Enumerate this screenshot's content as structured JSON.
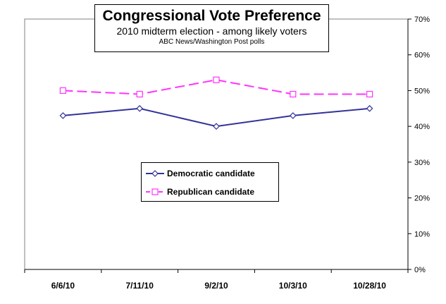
{
  "chart_data": {
    "type": "line",
    "title": "Congressional Vote Preference",
    "subtitle": "2010 midterm election - among likely voters",
    "source": "ABC News/Washington Post polls",
    "categories": [
      "6/6/10",
      "7/11/10",
      "9/2/10",
      "10/3/10",
      "10/28/10"
    ],
    "series": [
      {
        "name": "Democratic candidate",
        "values": [
          43,
          45,
          40,
          43,
          45
        ],
        "color": "#333399",
        "marker": "diamond",
        "dash": "solid"
      },
      {
        "name": "Republican candidate",
        "values": [
          50,
          49,
          53,
          49,
          49
        ],
        "color": "#ff33ff",
        "marker": "square",
        "dash": "dashed"
      }
    ],
    "y_ticks": [
      "0%",
      "10%",
      "20%",
      "30%",
      "40%",
      "50%",
      "60%",
      "70%"
    ],
    "ylim": [
      0,
      70
    ],
    "y_axis_position": "right",
    "grid": false,
    "legend_position": "center"
  }
}
